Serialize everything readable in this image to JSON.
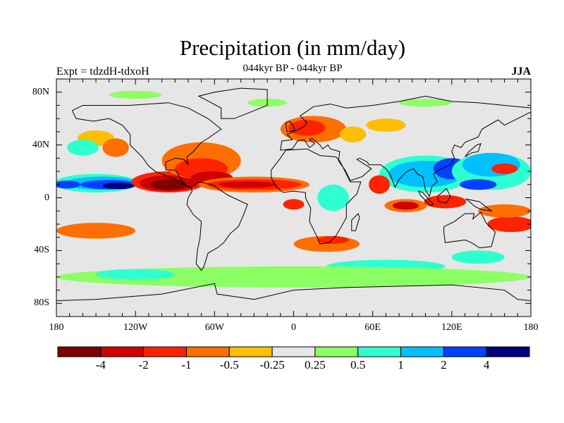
{
  "title": "Precipitation (in mm/day)",
  "left_label": "Expt = tdzdH-tdxoH",
  "center_label": "044kyr BP - 044kyr BP",
  "right_label": "JJA",
  "chart_data": {
    "type": "heatmap",
    "title": "Precipitation (in mm/day)",
    "xlabel": "",
    "ylabel": "",
    "lon_range": [
      -180,
      180
    ],
    "lat_range": [
      -90,
      90
    ],
    "y_ticks": [
      {
        "value": 80,
        "label": "80N"
      },
      {
        "value": 40,
        "label": "40N"
      },
      {
        "value": 0,
        "label": "0"
      },
      {
        "value": -40,
        "label": "40S"
      },
      {
        "value": -80,
        "label": "80S"
      }
    ],
    "x_ticks": [
      {
        "value": -180,
        "label": "180"
      },
      {
        "value": -120,
        "label": "120W"
      },
      {
        "value": -60,
        "label": "60W"
      },
      {
        "value": 0,
        "label": "0"
      },
      {
        "value": 60,
        "label": "60E"
      },
      {
        "value": 120,
        "label": "120E"
      },
      {
        "value": 180,
        "label": "180"
      }
    ],
    "colorbar": {
      "colors": [
        "#800000",
        "#d00000",
        "#ff2200",
        "#ff6e00",
        "#ffbe00",
        "#e6e6e6",
        "#8cff64",
        "#2effd0",
        "#00c0ff",
        "#0040ff",
        "#000080"
      ],
      "labels": [
        "-4",
        "-2",
        "-1",
        "-0.5",
        "-0.25",
        "0.25",
        "0.5",
        "1",
        "2",
        "4"
      ]
    },
    "anomaly_regions": [
      {
        "lon": -150,
        "lat": 11,
        "rlon": 32,
        "rlat": 7,
        "level": 7
      },
      {
        "lon": -145,
        "lat": 11,
        "rlon": 28,
        "rlat": 5,
        "level": 8
      },
      {
        "lon": -140,
        "lat": 10,
        "rlon": 22,
        "rlat": 3.5,
        "level": 9
      },
      {
        "lon": -133,
        "lat": 9,
        "rlon": 12,
        "rlat": 2.5,
        "level": 10
      },
      {
        "lon": -172,
        "lat": 10,
        "rlon": 10,
        "rlat": 3,
        "level": 9
      },
      {
        "lon": -95,
        "lat": 12,
        "rlon": 28,
        "rlat": 8,
        "level": 2
      },
      {
        "lon": -95,
        "lat": 11,
        "rlon": 22,
        "rlat": 6,
        "level": 1
      },
      {
        "lon": -95,
        "lat": 10,
        "rlon": 14,
        "rlat": 4,
        "level": 0
      },
      {
        "lon": -70,
        "lat": 28,
        "rlon": 30,
        "rlat": 14,
        "level": 3
      },
      {
        "lon": -70,
        "lat": 22,
        "rlon": 20,
        "rlat": 8,
        "level": 2
      },
      {
        "lon": -62,
        "lat": 15,
        "rlon": 16,
        "rlat": 5,
        "level": 1
      },
      {
        "lon": -30,
        "lat": 10,
        "rlon": 42,
        "rlat": 6,
        "level": 3
      },
      {
        "lon": -30,
        "lat": 10,
        "rlon": 36,
        "rlat": 4,
        "level": 2
      },
      {
        "lon": -35,
        "lat": 10,
        "rlon": 22,
        "rlat": 2.5,
        "level": 1
      },
      {
        "lon": -150,
        "lat": 45,
        "rlon": 14,
        "rlat": 6,
        "level": 4
      },
      {
        "lon": -135,
        "lat": 38,
        "rlon": 10,
        "rlat": 7,
        "level": 3
      },
      {
        "lon": -160,
        "lat": 38,
        "rlon": 12,
        "rlat": 6,
        "level": 7
      },
      {
        "lon": 15,
        "lat": 52,
        "rlon": 25,
        "rlat": 10,
        "level": 3
      },
      {
        "lon": 10,
        "lat": 53,
        "rlon": 14,
        "rlat": 6,
        "level": 2
      },
      {
        "lon": 45,
        "lat": 48,
        "rlon": 10,
        "rlat": 6,
        "level": 4
      },
      {
        "lon": 70,
        "lat": 55,
        "rlon": 15,
        "rlat": 5,
        "level": 4
      },
      {
        "lon": 100,
        "lat": 18,
        "rlon": 35,
        "rlat": 14,
        "level": 7
      },
      {
        "lon": 100,
        "lat": 18,
        "rlon": 28,
        "rlat": 10,
        "level": 8
      },
      {
        "lon": 120,
        "lat": 22,
        "rlon": 14,
        "rlat": 8,
        "level": 9
      },
      {
        "lon": 150,
        "lat": 20,
        "rlon": 30,
        "rlat": 14,
        "level": 7
      },
      {
        "lon": 150,
        "lat": 25,
        "rlon": 22,
        "rlat": 9,
        "level": 8
      },
      {
        "lon": 160,
        "lat": 22,
        "rlon": 10,
        "rlat": 4,
        "level": 2
      },
      {
        "lon": 140,
        "lat": 10,
        "rlon": 14,
        "rlat": 4,
        "level": 9
      },
      {
        "lon": 65,
        "lat": 10,
        "rlon": 8,
        "rlat": 7,
        "level": 2
      },
      {
        "lon": 85,
        "lat": -6,
        "rlon": 16,
        "rlat": 5,
        "level": 3
      },
      {
        "lon": 85,
        "lat": -6,
        "rlon": 10,
        "rlat": 3,
        "level": 1
      },
      {
        "lon": 115,
        "lat": -3,
        "rlon": 16,
        "rlat": 5,
        "level": 2
      },
      {
        "lon": 165,
        "lat": -20,
        "rlon": 18,
        "rlat": 6,
        "level": 2
      },
      {
        "lon": 160,
        "lat": -10,
        "rlon": 20,
        "rlat": 5,
        "level": 3
      },
      {
        "lon": -150,
        "lat": -25,
        "rlon": 30,
        "rlat": 6,
        "level": 3
      },
      {
        "lon": 25,
        "lat": -35,
        "rlon": 25,
        "rlat": 6,
        "level": 3
      },
      {
        "lon": 30,
        "lat": -32,
        "rlon": 12,
        "rlat": 3,
        "level": 2
      },
      {
        "lon": 30,
        "lat": 0,
        "rlon": 12,
        "rlat": 10,
        "level": 7
      },
      {
        "lon": 0,
        "lat": -5,
        "rlon": 8,
        "rlat": 4,
        "level": 2
      },
      {
        "lon": 70,
        "lat": -52,
        "rlon": 45,
        "rlat": 5,
        "level": 7
      },
      {
        "lon": 0,
        "lat": -60,
        "rlon": 180,
        "rlat": 8,
        "level": 6
      },
      {
        "lon": -120,
        "lat": -58,
        "rlon": 30,
        "rlat": 4,
        "level": 7
      },
      {
        "lon": 140,
        "lat": -45,
        "rlon": 20,
        "rlat": 5,
        "level": 7
      },
      {
        "lon": -120,
        "lat": 78,
        "rlon": 20,
        "rlat": 3,
        "level": 6
      },
      {
        "lon": -20,
        "lat": 72,
        "rlon": 15,
        "rlat": 3,
        "level": 6
      },
      {
        "lon": 100,
        "lat": 72,
        "rlon": 20,
        "rlat": 3,
        "level": 6
      }
    ]
  }
}
